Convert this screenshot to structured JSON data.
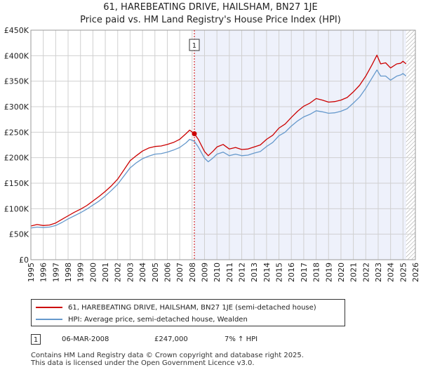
{
  "header": {
    "title_line1": "61, HAREBEATING DRIVE, HAILSHAM, BN27 1JE",
    "title_line2": "Price paid vs. HM Land Registry's House Price Index (HPI)"
  },
  "colors": {
    "property_line": "#cc0000",
    "hpi_line": "#6699cc",
    "highlight_fill": "#eef1fb",
    "hatch": "#999999",
    "grid": "#d0d0d0",
    "marker_line": "#cc0000"
  },
  "chart_data": {
    "type": "line",
    "title": "61, HAREBEATING DRIVE, HAILSHAM, BN27 1JE",
    "subtitle": "Price paid vs. HM Land Registry's House Price Index (HPI)",
    "xlim": [
      1995,
      2026
    ],
    "ylim": [
      0,
      450000
    ],
    "x_ticks": [
      1995,
      1996,
      1997,
      1998,
      1999,
      2000,
      2001,
      2002,
      2003,
      2004,
      2005,
      2006,
      2007,
      2008,
      2009,
      2010,
      2011,
      2012,
      2013,
      2014,
      2015,
      2016,
      2017,
      2018,
      2019,
      2020,
      2021,
      2022,
      2023,
      2024,
      2025,
      2026
    ],
    "y_ticks": [
      {
        "value": 0,
        "label": "£0"
      },
      {
        "value": 50000,
        "label": "£50K"
      },
      {
        "value": 100000,
        "label": "£100K"
      },
      {
        "value": 150000,
        "label": "£150K"
      },
      {
        "value": 200000,
        "label": "£200K"
      },
      {
        "value": 250000,
        "label": "£250K"
      },
      {
        "value": 300000,
        "label": "£300K"
      },
      {
        "value": 350000,
        "label": "£350K"
      },
      {
        "value": 400000,
        "label": "£400K"
      },
      {
        "value": 450000,
        "label": "£450K"
      }
    ],
    "highlight_range": [
      2008.18,
      2025.25
    ],
    "future_hatch_from": 2025.25,
    "series": [
      {
        "name": "61, HAREBEATING DRIVE, HAILSHAM, BN27 1JE (semi-detached house)",
        "x": [
          1995,
          1995.5,
          1996,
          1996.5,
          1997,
          1997.5,
          1998,
          1998.5,
          1999,
          1999.5,
          2000,
          2000.5,
          2001,
          2001.5,
          2002,
          2002.5,
          2003,
          2003.5,
          2004,
          2004.5,
          2005,
          2005.5,
          2006,
          2006.5,
          2007,
          2007.5,
          2007.8,
          2008.18,
          2008.5,
          2009,
          2009.3,
          2009.7,
          2010,
          2010.5,
          2011,
          2011.5,
          2012,
          2012.5,
          2013,
          2013.5,
          2014,
          2014.5,
          2015,
          2015.5,
          2016,
          2016.5,
          2017,
          2017.5,
          2018,
          2018.5,
          2019,
          2019.5,
          2020,
          2020.5,
          2021,
          2021.5,
          2022,
          2022.5,
          2022.9,
          2023.2,
          2023.6,
          2024,
          2024.5,
          2024.8,
          2025,
          2025.25
        ],
        "values": [
          66000,
          69000,
          67000,
          68000,
          72000,
          79000,
          86000,
          93000,
          99000,
          106000,
          115000,
          124000,
          134000,
          145000,
          158000,
          176000,
          194000,
          204000,
          213000,
          219000,
          222000,
          223000,
          226000,
          230000,
          236000,
          247000,
          254000,
          247000,
          236000,
          212000,
          204000,
          213000,
          221000,
          226000,
          217000,
          220000,
          216000,
          217000,
          221000,
          225000,
          236000,
          244000,
          258000,
          266000,
          279000,
          291000,
          301000,
          307000,
          316000,
          313000,
          309000,
          310000,
          313000,
          318000,
          329000,
          342000,
          360000,
          382000,
          401000,
          384000,
          386000,
          376000,
          384000,
          385000,
          389000,
          384000
        ]
      },
      {
        "name": "HPI: Average price, semi-detached house, Wealden",
        "x": [
          1995,
          1995.5,
          1996,
          1996.5,
          1997,
          1997.5,
          1998,
          1998.5,
          1999,
          1999.5,
          2000,
          2000.5,
          2001,
          2001.5,
          2002,
          2002.5,
          2003,
          2003.5,
          2004,
          2004.5,
          2005,
          2005.5,
          2006,
          2006.5,
          2007,
          2007.5,
          2007.8,
          2008.18,
          2008.5,
          2009,
          2009.3,
          2009.7,
          2010,
          2010.5,
          2011,
          2011.5,
          2012,
          2012.5,
          2013,
          2013.5,
          2014,
          2014.5,
          2015,
          2015.5,
          2016,
          2016.5,
          2017,
          2017.5,
          2018,
          2018.5,
          2019,
          2019.5,
          2020,
          2020.5,
          2021,
          2021.5,
          2022,
          2022.5,
          2022.9,
          2023.2,
          2023.6,
          2024,
          2024.5,
          2024.8,
          2025,
          2025.25
        ],
        "values": [
          62000,
          64000,
          63000,
          64000,
          67000,
          73000,
          80000,
          86000,
          92000,
          99000,
          107000,
          115000,
          125000,
          136000,
          148000,
          164000,
          180000,
          190000,
          198000,
          203000,
          207000,
          208000,
          211000,
          215000,
          220000,
          229000,
          236000,
          232000,
          221000,
          199000,
          192000,
          200000,
          207000,
          211000,
          204000,
          207000,
          204000,
          205000,
          209000,
          212000,
          222000,
          230000,
          243000,
          250000,
          262000,
          272000,
          280000,
          285000,
          292000,
          290000,
          287000,
          288000,
          291000,
          296000,
          307000,
          319000,
          336000,
          356000,
          372000,
          360000,
          360000,
          352000,
          360000,
          362000,
          365000,
          360000
        ]
      }
    ],
    "annotations": [
      {
        "label": "1",
        "x": 2008.18,
        "value": 247000
      }
    ]
  },
  "legend": {
    "items": [
      {
        "label": "61, HAREBEATING DRIVE, HAILSHAM, BN27 1JE (semi-detached house)"
      },
      {
        "label": "HPI: Average price, semi-detached house, Wealden"
      }
    ]
  },
  "sale": {
    "number": "1",
    "date": "06-MAR-2008",
    "price": "£247,000",
    "change": "7% ↑ HPI"
  },
  "footer": {
    "line1": "Contains HM Land Registry data © Crown copyright and database right 2025.",
    "line2": "This data is licensed under the Open Government Licence v3.0."
  }
}
